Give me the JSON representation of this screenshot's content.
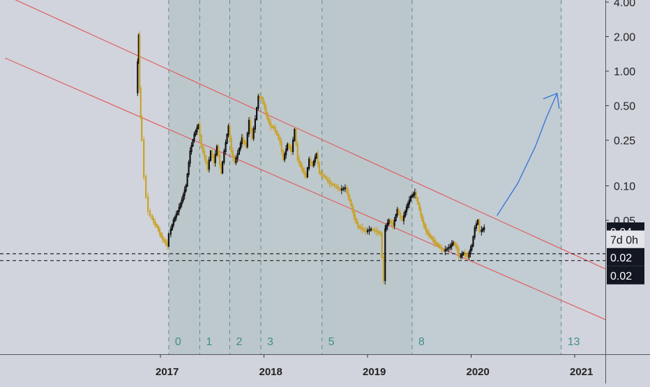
{
  "chart_data": {
    "type": "candlestick",
    "scale": "log",
    "grid": false,
    "y_axis": {
      "ticks": [
        {
          "label": "4.00",
          "value": 4.0
        },
        {
          "label": "2.00",
          "value": 2.0
        },
        {
          "label": "1.00",
          "value": 1.0
        },
        {
          "label": "0.50",
          "value": 0.5
        },
        {
          "label": "0.25",
          "value": 0.25
        },
        {
          "label": "0.10",
          "value": 0.1
        },
        {
          "label": "0.05",
          "value": 0.05
        }
      ],
      "badges": [
        {
          "label": "0.04",
          "value": 0.04,
          "style": "dark"
        },
        {
          "label": "7d 0h",
          "value": 0.034,
          "style": "light"
        },
        {
          "label": "0.02",
          "value": 0.0239,
          "style": "dark"
        },
        {
          "label": "0.02",
          "value": 0.0166,
          "style": "dark"
        }
      ]
    },
    "x_axis": {
      "ticks": [
        {
          "label": "2017",
          "value": 2017.0
        },
        {
          "label": "2018",
          "value": 2018.0
        },
        {
          "label": "2019",
          "value": 2019.0
        },
        {
          "label": "2020",
          "value": 2020.0
        },
        {
          "label": "2021",
          "value": 2021.0
        }
      ]
    },
    "fib_time_zones": [
      {
        "label": "0",
        "t": 2017.08
      },
      {
        "label": "1",
        "t": 2017.38
      },
      {
        "label": "2",
        "t": 2017.67
      },
      {
        "label": "3",
        "t": 2017.97
      },
      {
        "label": "5",
        "t": 2018.56
      },
      {
        "label": "8",
        "t": 2019.43
      },
      {
        "label": "13",
        "t": 2020.87
      }
    ],
    "horizontal_levels": [
      0.0256,
      0.0223
    ],
    "channel": {
      "upper": [
        {
          "t": 2015.5,
          "v": 4.6
        },
        {
          "t": 2021.3,
          "v": 0.0188
        }
      ],
      "lower": [
        {
          "t": 2015.5,
          "v": 1.3
        },
        {
          "t": 2021.3,
          "v": 0.0068
        }
      ]
    },
    "projection_arrow": [
      {
        "t": 2020.25,
        "v": 0.055
      },
      {
        "t": 2020.45,
        "v": 0.105
      },
      {
        "t": 2020.62,
        "v": 0.22
      },
      {
        "t": 2020.73,
        "v": 0.4
      },
      {
        "t": 2020.83,
        "v": 0.64
      }
    ],
    "price_path": [
      [
        2016.78,
        0.65
      ],
      [
        2016.79,
        1.2
      ],
      [
        2016.8,
        2.05
      ],
      [
        2016.81,
        0.7
      ],
      [
        2016.82,
        0.4
      ],
      [
        2016.84,
        0.25
      ],
      [
        2016.86,
        0.12
      ],
      [
        2016.88,
        0.08
      ],
      [
        2016.9,
        0.06
      ],
      [
        2016.92,
        0.055
      ],
      [
        2016.95,
        0.048
      ],
      [
        2016.98,
        0.044
      ],
      [
        2017.02,
        0.036
      ],
      [
        2017.05,
        0.033
      ],
      [
        2017.08,
        0.03
      ],
      [
        2017.1,
        0.038
      ],
      [
        2017.14,
        0.05
      ],
      [
        2017.18,
        0.06
      ],
      [
        2017.22,
        0.075
      ],
      [
        2017.26,
        0.1
      ],
      [
        2017.3,
        0.2
      ],
      [
        2017.34,
        0.28
      ],
      [
        2017.38,
        0.34
      ],
      [
        2017.41,
        0.22
      ],
      [
        2017.44,
        0.18
      ],
      [
        2017.47,
        0.14
      ],
      [
        2017.5,
        0.2
      ],
      [
        2017.53,
        0.16
      ],
      [
        2017.56,
        0.22
      ],
      [
        2017.6,
        0.13
      ],
      [
        2017.63,
        0.2
      ],
      [
        2017.67,
        0.33
      ],
      [
        2017.7,
        0.2
      ],
      [
        2017.73,
        0.16
      ],
      [
        2017.76,
        0.19
      ],
      [
        2017.8,
        0.26
      ],
      [
        2017.84,
        0.22
      ],
      [
        2017.87,
        0.37
      ],
      [
        2017.9,
        0.26
      ],
      [
        2017.93,
        0.38
      ],
      [
        2017.96,
        0.6
      ],
      [
        2017.99,
        0.58
      ],
      [
        2018.02,
        0.48
      ],
      [
        2018.05,
        0.38
      ],
      [
        2018.08,
        0.33
      ],
      [
        2018.11,
        0.32
      ],
      [
        2018.14,
        0.28
      ],
      [
        2018.17,
        0.24
      ],
      [
        2018.2,
        0.17
      ],
      [
        2018.24,
        0.23
      ],
      [
        2018.28,
        0.2
      ],
      [
        2018.31,
        0.31
      ],
      [
        2018.34,
        0.17
      ],
      [
        2018.38,
        0.14
      ],
      [
        2018.42,
        0.12
      ],
      [
        2018.45,
        0.17
      ],
      [
        2018.48,
        0.15
      ],
      [
        2018.52,
        0.19
      ],
      [
        2018.55,
        0.13
      ],
      [
        2018.6,
        0.12
      ],
      [
        2018.65,
        0.105
      ],
      [
        2018.7,
        0.1
      ],
      [
        2018.75,
        0.092
      ],
      [
        2018.8,
        0.096
      ],
      [
        2018.84,
        0.075
      ],
      [
        2018.88,
        0.055
      ],
      [
        2018.92,
        0.044
      ],
      [
        2018.95,
        0.043
      ],
      [
        2019.0,
        0.04
      ],
      [
        2019.05,
        0.042
      ],
      [
        2019.1,
        0.04
      ],
      [
        2019.14,
        0.038
      ],
      [
        2019.17,
        0.015
      ],
      [
        2019.18,
        0.042
      ],
      [
        2019.22,
        0.05
      ],
      [
        2019.26,
        0.045
      ],
      [
        2019.3,
        0.062
      ],
      [
        2019.35,
        0.05
      ],
      [
        2019.39,
        0.065
      ],
      [
        2019.43,
        0.08
      ],
      [
        2019.47,
        0.087
      ],
      [
        2019.5,
        0.07
      ],
      [
        2019.54,
        0.05
      ],
      [
        2019.58,
        0.04
      ],
      [
        2019.62,
        0.036
      ],
      [
        2019.66,
        0.032
      ],
      [
        2019.7,
        0.03
      ],
      [
        2019.75,
        0.027
      ],
      [
        2019.8,
        0.029
      ],
      [
        2019.84,
        0.032
      ],
      [
        2019.88,
        0.028
      ],
      [
        2019.9,
        0.024
      ],
      [
        2019.94,
        0.026
      ],
      [
        2019.98,
        0.024
      ],
      [
        2020.02,
        0.03
      ],
      [
        2020.05,
        0.043
      ],
      [
        2020.08,
        0.05
      ],
      [
        2020.1,
        0.04
      ],
      [
        2020.14,
        0.043
      ]
    ]
  }
}
